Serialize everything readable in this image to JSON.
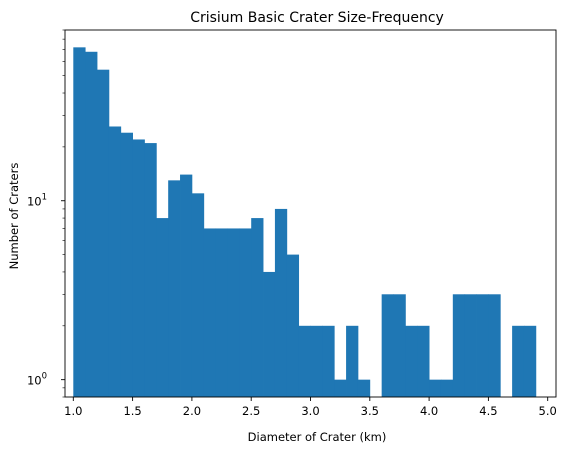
{
  "chart_data": {
    "type": "bar",
    "title": "Crisium Basic Crater Size-Frequency",
    "xlabel": "Diameter of Crater (km)",
    "ylabel": "Number of Craters",
    "y_scale": "log",
    "x_range": [
      0.93,
      5.07
    ],
    "y_range": [
      0.8,
      90
    ],
    "grid": false,
    "bin_width": 0.1,
    "bins": [
      {
        "x0": 1.0,
        "count": 72
      },
      {
        "x0": 1.1,
        "count": 68
      },
      {
        "x0": 1.2,
        "count": 54
      },
      {
        "x0": 1.3,
        "count": 26
      },
      {
        "x0": 1.4,
        "count": 24
      },
      {
        "x0": 1.5,
        "count": 22
      },
      {
        "x0": 1.6,
        "count": 21
      },
      {
        "x0": 1.7,
        "count": 8
      },
      {
        "x0": 1.8,
        "count": 13
      },
      {
        "x0": 1.9,
        "count": 14
      },
      {
        "x0": 2.0,
        "count": 11
      },
      {
        "x0": 2.1,
        "count": 7
      },
      {
        "x0": 2.2,
        "count": 7
      },
      {
        "x0": 2.3,
        "count": 7
      },
      {
        "x0": 2.4,
        "count": 7
      },
      {
        "x0": 2.5,
        "count": 8
      },
      {
        "x0": 2.6,
        "count": 4
      },
      {
        "x0": 2.7,
        "count": 9
      },
      {
        "x0": 2.8,
        "count": 5
      },
      {
        "x0": 2.9,
        "count": 2
      },
      {
        "x0": 3.0,
        "count": 2
      },
      {
        "x0": 3.1,
        "count": 2
      },
      {
        "x0": 3.2,
        "count": 1
      },
      {
        "x0": 3.3,
        "count": 2
      },
      {
        "x0": 3.4,
        "count": 1
      },
      {
        "x0": 3.5,
        "count": 0
      },
      {
        "x0": 3.6,
        "count": 3
      },
      {
        "x0": 3.7,
        "count": 3
      },
      {
        "x0": 3.8,
        "count": 2
      },
      {
        "x0": 3.9,
        "count": 2
      },
      {
        "x0": 4.0,
        "count": 1
      },
      {
        "x0": 4.1,
        "count": 1
      },
      {
        "x0": 4.2,
        "count": 3
      },
      {
        "x0": 4.3,
        "count": 3
      },
      {
        "x0": 4.4,
        "count": 3
      },
      {
        "x0": 4.5,
        "count": 3
      },
      {
        "x0": 4.6,
        "count": 0
      },
      {
        "x0": 4.7,
        "count": 2
      },
      {
        "x0": 4.8,
        "count": 2
      }
    ],
    "x_ticks": [
      "1.0",
      "1.5",
      "2.0",
      "2.5",
      "3.0",
      "3.5",
      "4.0",
      "4.5",
      "5.0"
    ],
    "y_ticks": [
      {
        "base": "10",
        "exp": "0",
        "value": 1
      },
      {
        "base": "10",
        "exp": "1",
        "value": 10
      }
    ],
    "bar_color": "#1f77b4"
  }
}
